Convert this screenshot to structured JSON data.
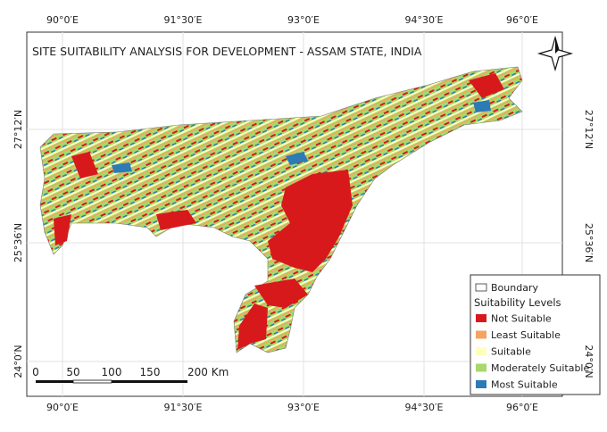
{
  "title": "SITE SUITABILITY ANALYSIS FOR DEVELOPMENT - ASSAM STATE, INDIA",
  "graticule": {
    "longitudes": [
      "90°0′E",
      "91°30′E",
      "93°0′E",
      "94°30′E",
      "96°0′E"
    ],
    "latitudes": [
      "27°12′N",
      "25°36′N",
      "24°0′N"
    ]
  },
  "legend": {
    "boundary": "Boundary",
    "heading": "Suitability Levels",
    "classes": [
      {
        "label": "Not Suitable",
        "color": "#d7191c"
      },
      {
        "label": "Least Suitable",
        "color": "#f4a460"
      },
      {
        "label": "Suitable",
        "color": "#ffffbf"
      },
      {
        "label": "Moderately Suitable",
        "color": "#a6d96a"
      },
      {
        "label": "Most Suitable",
        "color": "#2c7bb6"
      }
    ]
  },
  "scale_bar": {
    "labels": [
      "0",
      "50",
      "100",
      "150",
      "200 Km"
    ]
  }
}
